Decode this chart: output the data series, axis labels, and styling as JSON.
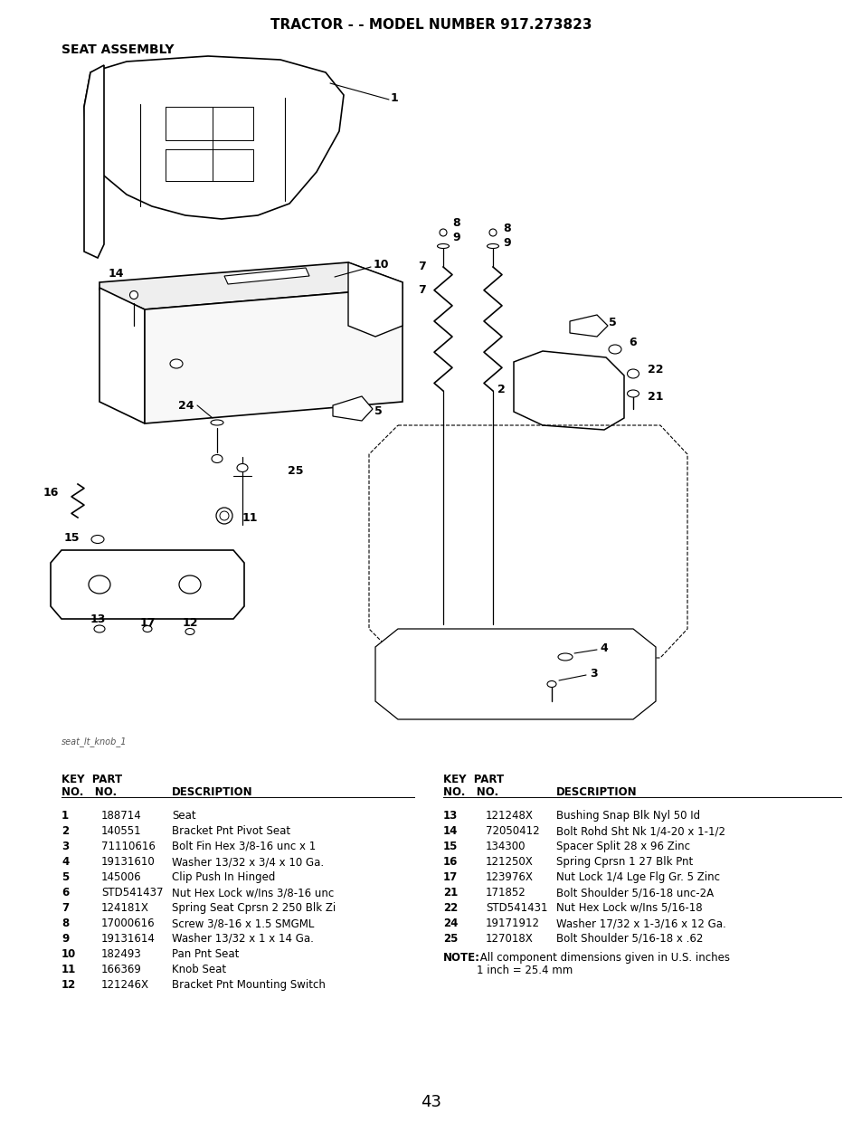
{
  "title": "TRACTOR - - MODEL NUMBER 917.273823",
  "subtitle": "SEAT ASSEMBLY",
  "diagram_label": "seat_lt_knob_1",
  "page_number": "43",
  "bg_color": "#ffffff",
  "left_table": {
    "rows": [
      [
        "1",
        "188714",
        "Seat"
      ],
      [
        "2",
        "140551",
        "Bracket Pnt Pivot Seat"
      ],
      [
        "3",
        "71110616",
        "Bolt Fin Hex 3/8-16 unc x 1"
      ],
      [
        "4",
        "19131610",
        "Washer 13/32 x 3/4 x 10 Ga."
      ],
      [
        "5",
        "145006",
        "Clip Push In Hinged"
      ],
      [
        "6",
        "STD541437",
        "Nut Hex Lock w/Ins 3/8-16 unc"
      ],
      [
        "7",
        "124181X",
        "Spring Seat Cprsn 2 250 Blk Zi"
      ],
      [
        "8",
        "17000616",
        "Screw 3/8-16 x 1.5 SMGML"
      ],
      [
        "9",
        "19131614",
        "Washer 13/32 x 1 x 14 Ga."
      ],
      [
        "10",
        "182493",
        "Pan Pnt Seat"
      ],
      [
        "11",
        "166369",
        "Knob Seat"
      ],
      [
        "12",
        "121246X",
        "Bracket Pnt Mounting Switch"
      ]
    ]
  },
  "right_table": {
    "rows": [
      [
        "13",
        "121248X",
        "Bushing Snap Blk Nyl 50 Id"
      ],
      [
        "14",
        "72050412",
        "Bolt Rohd Sht Nk 1/4-20 x 1-1/2"
      ],
      [
        "15",
        "134300",
        "Spacer Split 28 x 96 Zinc"
      ],
      [
        "16",
        "121250X",
        "Spring Cprsn 1 27 Blk Pnt"
      ],
      [
        "17",
        "123976X",
        "Nut Lock 1/4 Lge Flg Gr. 5 Zinc"
      ],
      [
        "21",
        "171852",
        "Bolt Shoulder 5/16-18 unc-2A"
      ],
      [
        "22",
        "STD541431",
        "Nut Hex Lock w/Ins 5/16-18"
      ],
      [
        "24",
        "19171912",
        "Washer 17/32 x 1-3/16 x 12 Ga."
      ],
      [
        "25",
        "127018X",
        "Bolt Shoulder 5/16-18 x .62"
      ]
    ]
  },
  "note_bold": "NOTE:",
  "note_rest": " All component dimensions given in U.S. inches",
  "note_line2": "1 inch = 25.4 mm",
  "title_fontsize": 11,
  "subtitle_fontsize": 10,
  "table_fontsize": 8.5,
  "page_fontsize": 13
}
